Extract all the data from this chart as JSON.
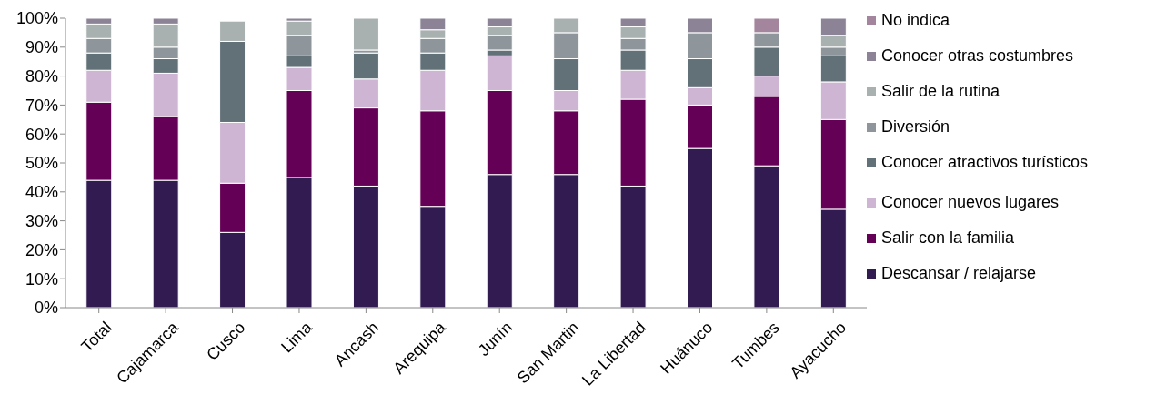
{
  "chart_data": {
    "type": "bar",
    "stacked": true,
    "categories": [
      "Total",
      "Cajamarca",
      "Cusco",
      "Lima",
      "Ancash",
      "Arequipa",
      "Junín",
      "San Martin",
      "La Libertad",
      "Huánuco",
      "Tumbes",
      "Ayacucho"
    ],
    "series": [
      {
        "name": "Descansar / relajarse",
        "color": "#311b51",
        "values": [
          44,
          44,
          26,
          45,
          42,
          35,
          46,
          46,
          42,
          55,
          49,
          34
        ]
      },
      {
        "name": "Salir con la familia",
        "color": "#640055",
        "values": [
          27,
          22,
          17,
          30,
          27,
          33,
          29,
          22,
          30,
          15,
          24,
          31
        ]
      },
      {
        "name": "Conocer nuevos lugares",
        "color": "#ceb5d3",
        "values": [
          11,
          15,
          21,
          8,
          10,
          14,
          12,
          7,
          10,
          6,
          7,
          13
        ]
      },
      {
        "name": "Conocer atractivos turísticos",
        "color": "#627177",
        "values": [
          6,
          5,
          28,
          4,
          9,
          6,
          2,
          11,
          7,
          10,
          10,
          9
        ]
      },
      {
        "name": "Diversión",
        "color": "#8f969b",
        "values": [
          5,
          4,
          0,
          7,
          1,
          5,
          5,
          9,
          4,
          9,
          5,
          3
        ]
      },
      {
        "name": "Salir de la rutina",
        "color": "#a9b0b0",
        "values": [
          5,
          8,
          7,
          5,
          11,
          3,
          3,
          5,
          4,
          0,
          0,
          4
        ]
      },
      {
        "name": "Conocer otras costumbres",
        "color": "#8c8496",
        "values": [
          2,
          2,
          0,
          1,
          0,
          4,
          3,
          0,
          3,
          5,
          0,
          6
        ]
      },
      {
        "name": "No indica",
        "color": "#a3859d",
        "values": [
          0,
          0,
          0,
          0,
          0,
          0,
          0,
          0,
          0,
          0,
          5,
          0
        ]
      }
    ],
    "ylim": [
      0,
      100
    ],
    "yticks": [
      {
        "value": 0,
        "label": "0%"
      },
      {
        "value": 10,
        "label": "10%"
      },
      {
        "value": 20,
        "label": "20%"
      },
      {
        "value": 30,
        "label": "30%"
      },
      {
        "value": 40,
        "label": "40%"
      },
      {
        "value": 50,
        "label": "50%"
      },
      {
        "value": 60,
        "label": "60%"
      },
      {
        "value": 70,
        "label": "70%"
      },
      {
        "value": 80,
        "label": "80%"
      },
      {
        "value": 90,
        "label": "90%"
      },
      {
        "value": 100,
        "label": "100%"
      }
    ],
    "grid": false,
    "legend": "right"
  }
}
